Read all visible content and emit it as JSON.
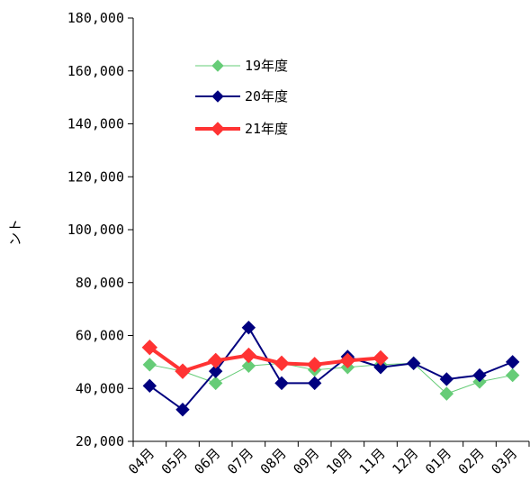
{
  "chart_data": {
    "type": "line",
    "categories": [
      "04月",
      "05月",
      "06月",
      "07月",
      "08月",
      "09月",
      "10月",
      "11月",
      "12月",
      "01月",
      "02月",
      "03月"
    ],
    "ylabel": "ント",
    "ylim": [
      20000,
      180000
    ],
    "yticks": [
      "20,000",
      "40,000",
      "60,000",
      "80,000",
      "100,000",
      "120,000",
      "140,000",
      "160,000",
      "180,000"
    ],
    "grid": false,
    "legend_position": "top-left",
    "series": [
      {
        "name": "19年度",
        "color": "#66cc77",
        "marker_color": "#66cc77",
        "line_width": 1,
        "values": [
          49000,
          46500,
          42000,
          48500,
          49500,
          47000,
          48000,
          49000,
          49500,
          38000,
          42500,
          45000
        ]
      },
      {
        "name": "20年度",
        "color": "#00007f",
        "marker_color": "#00007f",
        "line_width": 2,
        "values": [
          41000,
          32000,
          46500,
          63000,
          42000,
          42000,
          52000,
          48000,
          49500,
          43500,
          45000,
          50000
        ]
      },
      {
        "name": "21年度",
        "color": "#ff3333",
        "marker_color": "#ff3333",
        "line_width": 4,
        "values": [
          55500,
          46500,
          50500,
          52500,
          49500,
          49000,
          50500,
          51500,
          null,
          null,
          null,
          null
        ]
      }
    ]
  }
}
